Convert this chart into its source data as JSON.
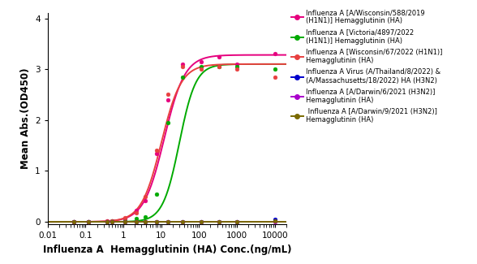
{
  "title": "",
  "xlabel": "Influenza A  Hemagglutinin (HA) Conc.(ng/mL)",
  "ylabel": "Mean Abs.(OD450)",
  "xlim": [
    0.01,
    20000
  ],
  "ylim": [
    -0.05,
    4.1
  ],
  "yticks": [
    0,
    1,
    2,
    3,
    4
  ],
  "series": [
    {
      "label": "Influenza A [A/Wisconsin/588/2019\n(H1N1)] Hemagglutinin (HA)",
      "color": "#e6007e",
      "ec50": 12,
      "hill": 1.6,
      "top": 3.28,
      "data_x": [
        0.05,
        0.12,
        0.37,
        0.5,
        1.1,
        2.2,
        3.7,
        7.4,
        14.8,
        37,
        111,
        333,
        1000,
        10000
      ],
      "data_y": [
        0.0,
        0.0,
        0.01,
        0.02,
        0.06,
        0.22,
        0.42,
        1.35,
        2.4,
        3.1,
        3.15,
        3.25,
        3.1,
        3.3
      ]
    },
    {
      "label": "Influenza A [Victoria/4897/2022\n(H1N1)] Hemagglutinin (HA)",
      "color": "#00aa00",
      "ec50": 30,
      "hill": 2.0,
      "top": 3.1,
      "data_x": [
        0.05,
        0.12,
        0.37,
        0.5,
        1.1,
        2.2,
        3.7,
        7.4,
        14.8,
        37,
        111,
        333,
        1000,
        10000
      ],
      "data_y": [
        0.0,
        0.0,
        0.0,
        0.01,
        0.02,
        0.06,
        0.1,
        0.55,
        1.95,
        2.85,
        3.05,
        3.05,
        3.05,
        3.0
      ]
    },
    {
      "label": "Influenza A [Wisconsin/67/2022 (H1N1)]\nHemagglutinin (HA)",
      "color": "#e84040",
      "ec50": 10,
      "hill": 1.65,
      "top": 3.1,
      "data_x": [
        0.05,
        0.12,
        0.37,
        0.5,
        1.1,
        2.2,
        3.7,
        7.4,
        14.8,
        37,
        111,
        333,
        1000,
        10000
      ],
      "data_y": [
        0.0,
        0.0,
        0.01,
        0.02,
        0.08,
        0.18,
        0.5,
        1.4,
        2.5,
        3.05,
        3.0,
        3.05,
        3.0,
        2.85
      ]
    },
    {
      "label": "Influenza A Virus (A/Thailand/8/2022) &\n(A/Massachusetts/18/2022) HA (H3N2)",
      "color": "#0000cc",
      "ec50": 100000000.0,
      "hill": 1.5,
      "top": 0.02,
      "data_x": [
        0.05,
        0.12,
        0.37,
        0.5,
        1.1,
        2.2,
        3.7,
        7.4,
        14.8,
        37,
        111,
        333,
        1000,
        10000
      ],
      "data_y": [
        0.0,
        0.0,
        0.0,
        0.0,
        0.0,
        0.0,
        0.0,
        0.0,
        0.0,
        0.0,
        0.0,
        0.0,
        0.0,
        0.05
      ]
    },
    {
      "label": "Influenza A [A/Darwin/6/2021 (H3N2)]\nHemagglutinin (HA)",
      "color": "#aa00cc",
      "ec50": 100000000.0,
      "hill": 1.5,
      "top": 0.02,
      "data_x": [
        0.05,
        0.12,
        0.37,
        0.5,
        1.1,
        2.2,
        3.7,
        7.4,
        14.8,
        37,
        111,
        333,
        1000,
        10000
      ],
      "data_y": [
        0.0,
        0.0,
        0.0,
        0.0,
        0.0,
        0.0,
        0.0,
        0.0,
        0.0,
        0.0,
        0.0,
        0.0,
        0.0,
        0.0
      ]
    },
    {
      "label": " Influenza A [A/Darwin/9/2021 (H3N2)]\nHemagglutinin (HA)",
      "color": "#7a6a00",
      "ec50": 100000000.0,
      "hill": 1.5,
      "top": 0.02,
      "data_x": [
        0.05,
        0.12,
        0.37,
        0.5,
        1.1,
        2.2,
        3.7,
        7.4,
        14.8,
        37,
        111,
        333,
        1000,
        10000
      ],
      "data_y": [
        0.0,
        0.0,
        0.0,
        0.0,
        0.0,
        0.0,
        0.0,
        0.0,
        0.0,
        0.0,
        0.0,
        0.0,
        0.0,
        0.02
      ]
    }
  ],
  "legend_fontsize": 6.0,
  "axis_fontsize": 8.5,
  "tick_fontsize": 7.5
}
